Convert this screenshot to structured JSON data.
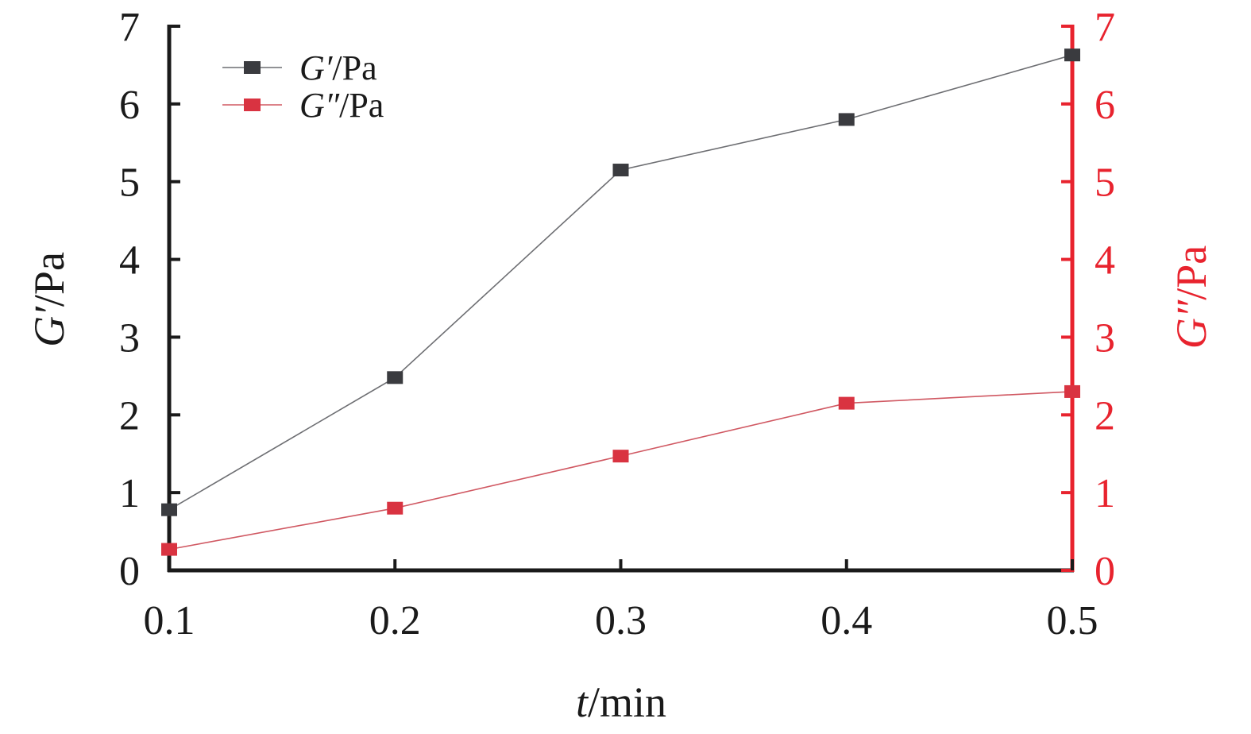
{
  "chart_data": {
    "type": "line",
    "x": [
      0.1,
      0.2,
      0.3,
      0.4,
      0.5
    ],
    "x_tick_labels": [
      "0.1",
      "0.2",
      "0.3",
      "0.4",
      "0.5"
    ],
    "xlim": [
      0.1,
      0.5
    ],
    "ylim_left": [
      0,
      7
    ],
    "ylim_right": [
      0,
      7
    ],
    "y_ticks": [
      0,
      1,
      2,
      3,
      4,
      5,
      6,
      7
    ],
    "y_tick_labels": [
      "0",
      "1",
      "2",
      "3",
      "4",
      "5",
      "6",
      "7"
    ],
    "xlabel": {
      "var": "t",
      "rest": "/min"
    },
    "ylabel_left": {
      "var": "G′",
      "rest": "/Pa"
    },
    "ylabel_right": {
      "var": "G″",
      "rest": "/Pa"
    },
    "legend_position": "top-left",
    "grid": false,
    "series": [
      {
        "name_var": "G′",
        "name_rest": "/Pa",
        "axis": "left",
        "color": "#3a3b3f",
        "line_color": "#6d6e72",
        "values": [
          0.78,
          2.48,
          5.15,
          5.8,
          6.63
        ]
      },
      {
        "name_var": "G″",
        "name_rest": "/Pa",
        "axis": "right",
        "color": "#d93341",
        "line_color": "#d05862",
        "values": [
          0.27,
          0.8,
          1.47,
          2.15,
          2.3
        ]
      }
    ],
    "colors": {
      "left_axis": "#1a1a1a",
      "right_axis": "#e8232e",
      "text": "#1a1a1a"
    }
  }
}
